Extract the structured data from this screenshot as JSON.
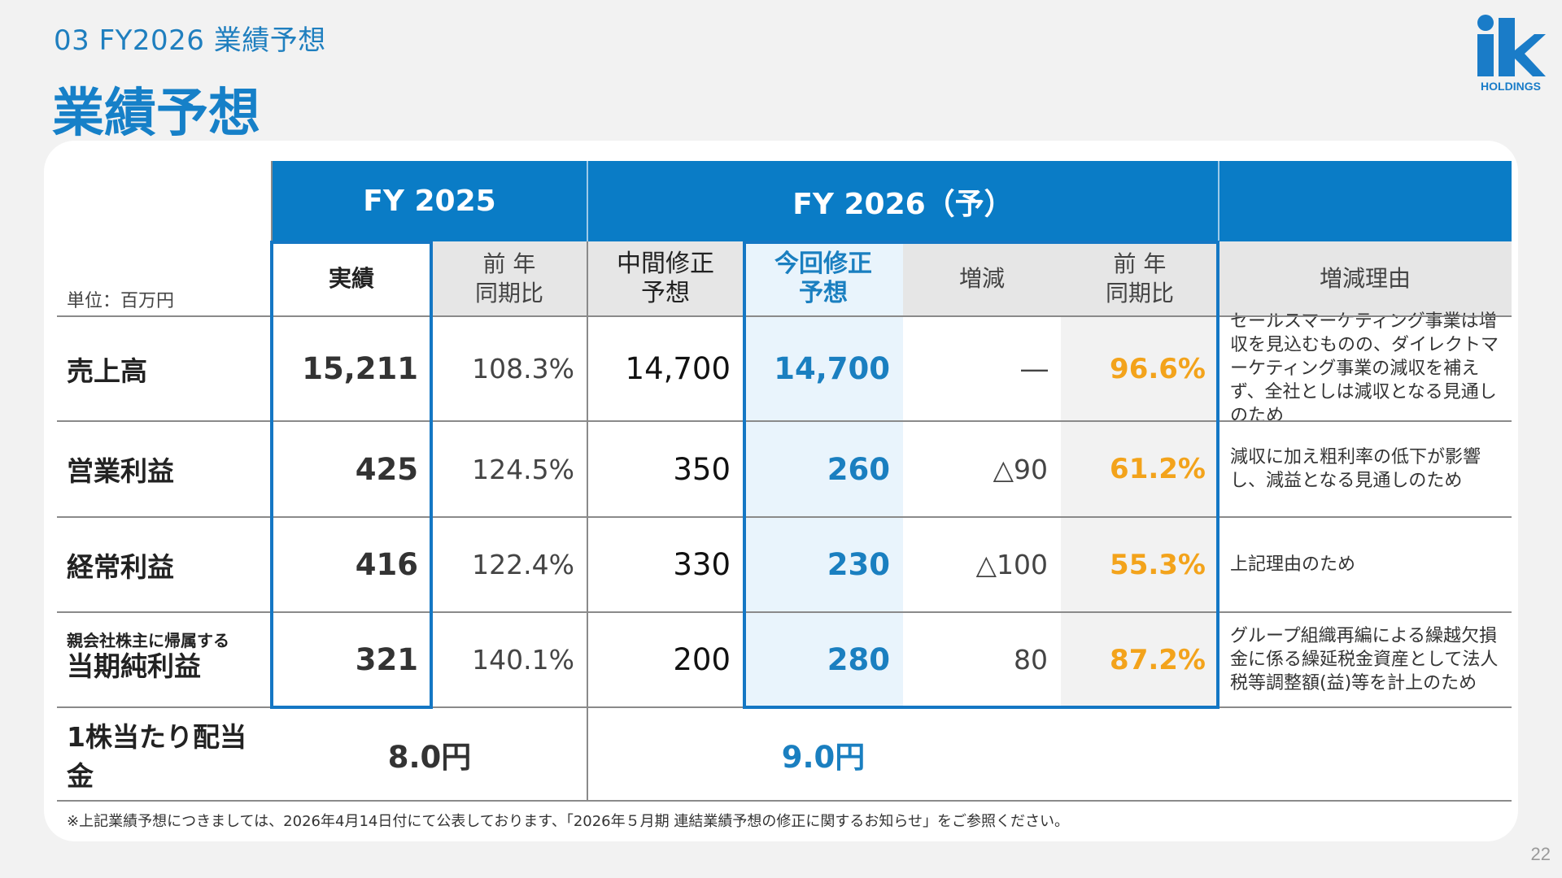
{
  "header": {
    "section": "03 FY2026 業績予想",
    "title": "業績予想",
    "logo_mark": "ik",
    "logo_sub": "HOLDINGS"
  },
  "table": {
    "unit": "単位：百万円",
    "group_headers": {
      "fy2025": "FY 2025",
      "fy2026": "FY 2026（予）"
    },
    "col_headers": {
      "actual": "実績",
      "yoy_2025": "前 年\n同期比",
      "interim": "中間修正\n予想",
      "current": "今回修正\n予想",
      "change": "増減",
      "yoy_2026": "前 年\n同期比",
      "reason": "増減理由"
    },
    "rows": [
      {
        "label_small": "",
        "label": "売上高",
        "actual": "15,211",
        "yoy_2025": "108.3%",
        "interim": "14,700",
        "current": "14,700",
        "change": "―",
        "yoy_2026": "96.6%",
        "reason": "セールスマーケティング事業は増収を見込むものの、ダイレクトマーケティング事業の減収を補えず、全社としは減収となる見通しのため"
      },
      {
        "label_small": "",
        "label": "営業利益",
        "actual": "425",
        "yoy_2025": "124.5%",
        "interim": "350",
        "current": "260",
        "change": "△90",
        "yoy_2026": "61.2%",
        "reason": "減収に加え粗利率の低下が影響し、減益となる見通しのため"
      },
      {
        "label_small": "",
        "label": "経常利益",
        "actual": "416",
        "yoy_2025": "122.4%",
        "interim": "330",
        "current": "230",
        "change": "△100",
        "yoy_2026": "55.3%",
        "reason": "上記理由のため"
      },
      {
        "label_small": "親会社株主に帰属する",
        "label": "当期純利益",
        "actual": "321",
        "yoy_2025": "140.1%",
        "interim": "200",
        "current": "280",
        "change": "80",
        "yoy_2026": "87.2%",
        "reason": "グループ組織再編による繰越欠損金に係る繰延税金資産として法人税等調整額(益)等を計上のため"
      }
    ],
    "dividend": {
      "label": "1株当たり配当金",
      "fy2025": "8.0円",
      "fy2026": "9.0円"
    }
  },
  "footnote": "※上記業績予想につきましては、2026年4月14日付にて公表しております、「2026年５月期 連結業績予想の修正に関するお知らせ」をご参照ください。",
  "page_number": "22",
  "colors": {
    "accent": "#0a7cc6",
    "highlight_orange": "#f3a31b",
    "highlight_blue": "#1a7fc0"
  }
}
